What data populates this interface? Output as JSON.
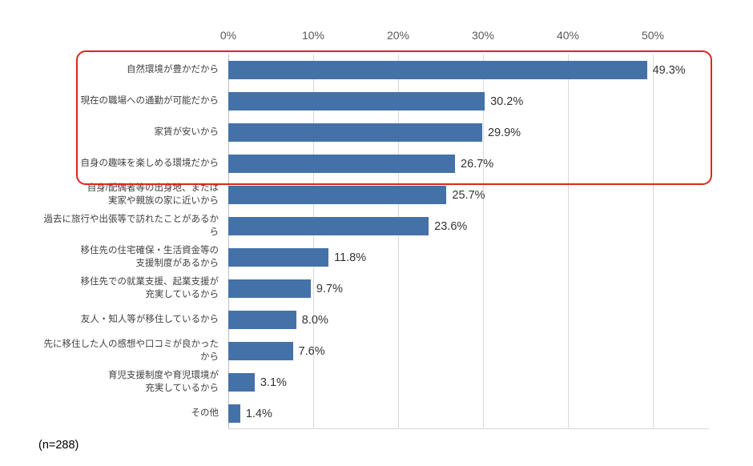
{
  "chart_data": {
    "type": "bar",
    "orientation": "horizontal",
    "title": "",
    "xlabel": "",
    "ylabel": "",
    "xlim": [
      0,
      50
    ],
    "x_ticks": [
      "0%",
      "10%",
      "20%",
      "30%",
      "40%",
      "50%"
    ],
    "grid": true,
    "categories": [
      "自然環境が豊かだから",
      "現在の職場への通勤が可能だから",
      "家賃が安いから",
      "自身の趣味を楽しめる環境だから",
      "自身/配偶者等の出身地、または\n実家や親族の家に近いから",
      "過去に旅行や出張等で訪れたことがあるから",
      "移住先の住宅確保・生活資金等の\n支援制度があるから",
      "移住先での就業支援、起業支援が\n充実しているから",
      "友人・知人等が移住しているから",
      "先に移住した人の感想や口コミが良かったから",
      "育児支援制度や育児環境が\n充実しているから",
      "その他"
    ],
    "values": [
      49.3,
      30.2,
      29.9,
      26.7,
      25.7,
      23.6,
      11.8,
      9.7,
      8.0,
      7.6,
      3.1,
      1.4
    ],
    "value_labels": [
      "49.3%",
      "30.2%",
      "29.9%",
      "26.7%",
      "25.7%",
      "23.6%",
      "11.8%",
      "9.7%",
      "8.0%",
      "7.6%",
      "3.1%",
      "1.4%"
    ],
    "highlighted_rows": [
      0,
      1,
      2,
      3
    ]
  },
  "footnote": "(n=288)",
  "colors": {
    "bar": "#4472a8",
    "grid": "#d9d9d9",
    "highlight": "#e0261c",
    "tick_text": "#595959",
    "label_text": "#404040"
  }
}
